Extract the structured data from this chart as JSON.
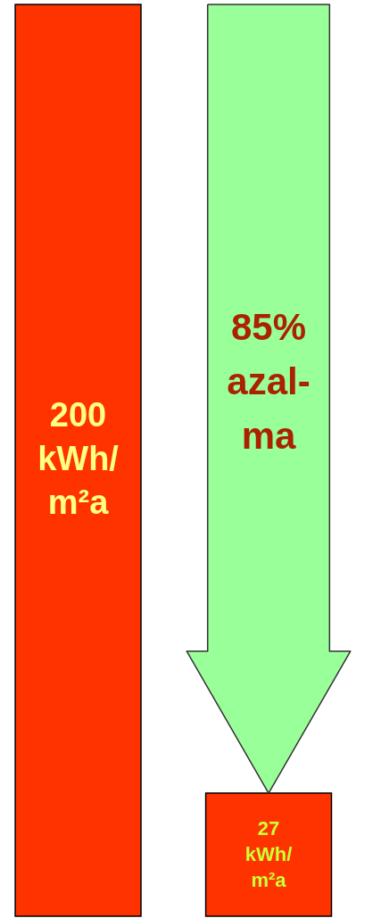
{
  "chart_data": {
    "type": "bar",
    "categories": [
      null,
      null
    ],
    "values": [
      200,
      27
    ],
    "colors": [
      "#ff3300",
      "#ff3300"
    ],
    "value_labels": [
      "200 kWh/m²a",
      "27 kWh/m²a"
    ],
    "annotations": [
      "85% azal-ma"
    ]
  }
}
